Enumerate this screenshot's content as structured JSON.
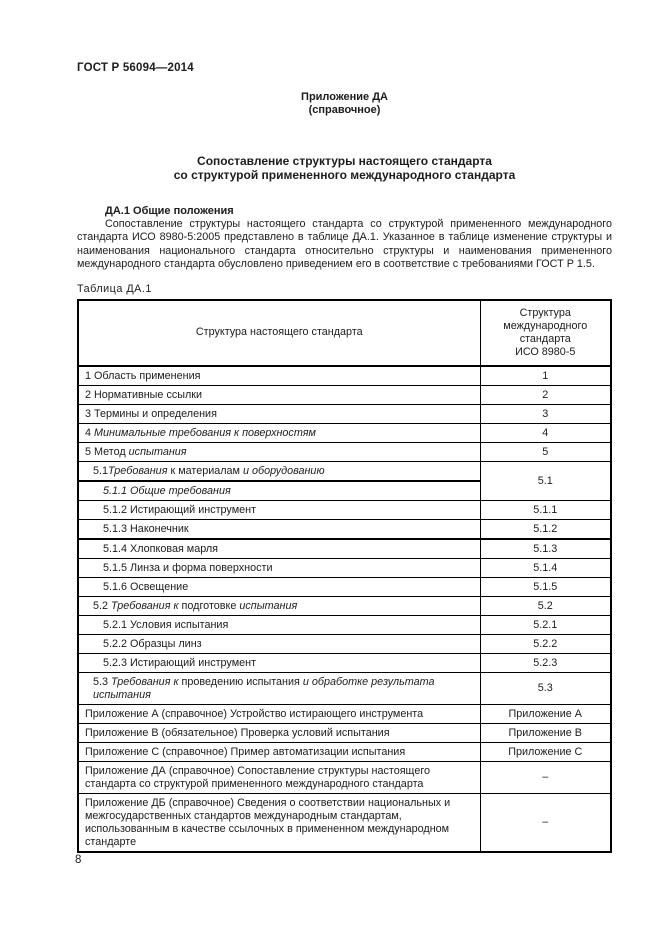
{
  "page": {
    "doc_code": "ГОСТ Р 56094—2014",
    "appendix_heading": "Приложение ДА",
    "appendix_type": "(справочное)",
    "title_line1": "Сопоставление структуры настоящего стандарта",
    "title_line2": "со структурой примененного международного стандарта",
    "section_heading": "ДА.1 Общие положения",
    "paragraph": "Сопоставление структуры настоящего стандарта со структурой примененного международного стандарта ИСО 8980-5:2005 представлено в таблице ДА.1. Указанное в таблице изменение структуры и наименования национального стандарта относительно структуры и наименования примененного международного стандарта обусловлено приведением его в соответствие с требованиями ГОСТ Р 1.5.",
    "table_label": "Таблица ДА.1",
    "page_number": "8"
  },
  "table": {
    "col1_header": "Структура настоящего стандарта",
    "col2_header": "Структура\nмеждународного\nстандарта\nИСО 8980-5",
    "rows": [
      {
        "indent": 0,
        "left": [
          {
            "t": "1 Область применения",
            "i": false
          }
        ],
        "right": "1"
      },
      {
        "indent": 0,
        "left": [
          {
            "t": "2 Нормативные ссылки",
            "i": false
          }
        ],
        "right": "2"
      },
      {
        "indent": 0,
        "left": [
          {
            "t": "3 Термины и определения",
            "i": false
          }
        ],
        "right": "3"
      },
      {
        "indent": 0,
        "left": [
          {
            "t": "4 ",
            "i": false
          },
          {
            "t": "Минимальные требования к поверхностям",
            "i": true
          }
        ],
        "right": "4"
      },
      {
        "indent": 0,
        "left": [
          {
            "t": "5 Метод ",
            "i": false
          },
          {
            "t": "испытания",
            "i": true
          }
        ],
        "right": "5"
      },
      {
        "indent": 1,
        "left": [
          {
            "t": "5.1",
            "i": false
          },
          {
            "t": "Требования",
            "i": true
          },
          {
            "t": " к материалам ",
            "i": false
          },
          {
            "t": "и оборудованию",
            "i": true
          }
        ],
        "right": "5.1",
        "rowspan": 2
      },
      {
        "indent": 2,
        "thick_top": true,
        "left": [
          {
            "t": "5.1.1 Общие требования",
            "i": true
          }
        ],
        "right": null
      },
      {
        "indent": 2,
        "left": [
          {
            "t": "5.1.2 Истирающий инструмент",
            "i": false
          }
        ],
        "right": "5.1.1"
      },
      {
        "indent": 2,
        "left": [
          {
            "t": "5.1.3 Наконечник",
            "i": false
          }
        ],
        "right": "5.1.2"
      },
      {
        "indent": 2,
        "thick_top": true,
        "left": [
          {
            "t": "5.1.4 Хлопковая марля",
            "i": false
          }
        ],
        "right": "5.1.3"
      },
      {
        "indent": 2,
        "left": [
          {
            "t": "5.1.5 Линза и форма поверхности",
            "i": false
          }
        ],
        "right": "5.1.4"
      },
      {
        "indent": 2,
        "left": [
          {
            "t": "5.1.6 Освещение",
            "i": false
          }
        ],
        "right": "5.1.5"
      },
      {
        "indent": 1,
        "left": [
          {
            "t": "5.2 ",
            "i": false
          },
          {
            "t": "Требования к",
            "i": true
          },
          {
            "t": " подготовке ",
            "i": false
          },
          {
            "t": "испытания",
            "i": true
          }
        ],
        "right": "5.2"
      },
      {
        "indent": 2,
        "left": [
          {
            "t": "5.2.1 Условия испытания",
            "i": false
          }
        ],
        "right": "5.2.1"
      },
      {
        "indent": 2,
        "left": [
          {
            "t": "5.2.2 Образцы линз",
            "i": false
          }
        ],
        "right": "5.2.2"
      },
      {
        "indent": 2,
        "left": [
          {
            "t": "5.2.3 Истирающий инструмент",
            "i": false
          }
        ],
        "right": "5.2.3"
      },
      {
        "indent": 1,
        "left": [
          {
            "t": "5.3 ",
            "i": false
          },
          {
            "t": "Требования к",
            "i": true
          },
          {
            "t": " проведению испытания ",
            "i": false
          },
          {
            "t": "и обработке результата испытания",
            "i": true
          }
        ],
        "right": "5.3"
      },
      {
        "indent": 0,
        "left": [
          {
            "t": "Приложение  А (справочное) Устройство истирающего инструмента",
            "i": false
          }
        ],
        "right": "Приложение А"
      },
      {
        "indent": 0,
        "left": [
          {
            "t": "Приложение В (обязательное) Проверка условий испытания",
            "i": false
          }
        ],
        "right": "Приложение В"
      },
      {
        "indent": 0,
        "left": [
          {
            "t": "Приложение С (справочное) Пример автоматизации испытания",
            "i": false
          }
        ],
        "right": "Приложение С"
      },
      {
        "indent": 0,
        "left": [
          {
            "t": "Приложение ДА (справочное) Сопоставление структуры настоящего стандарта со структурой примененного международного стандарта",
            "i": false
          }
        ],
        "right": "–"
      },
      {
        "indent": 0,
        "left": [
          {
            "t": "Приложение ДБ (справочное) Сведения о соответствии национальных и межгосударственных стандартов международным стандартам, использованным в качестве ссылочных в примененном международном стандарте",
            "i": false
          }
        ],
        "right": "–"
      }
    ]
  }
}
